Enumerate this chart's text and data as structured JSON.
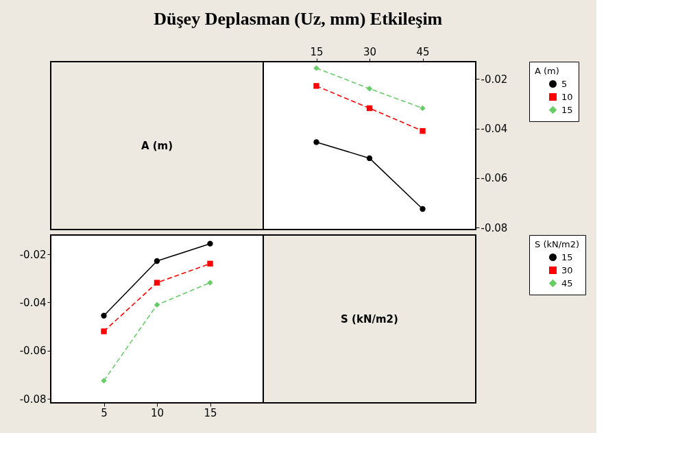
{
  "chart_data": [
    {
      "type": "line",
      "title": "Düşey Deplasman (Uz, mm) Etkileşim",
      "xlabel": "S (kN/m2)",
      "legend_title": "A (m)",
      "categories": [
        "15",
        "30",
        "45"
      ],
      "ylim": [
        -0.0808,
        -0.013
      ],
      "yticks": [
        -0.08,
        -0.06,
        -0.04,
        -0.02
      ],
      "grid": false,
      "legend": "right",
      "series": [
        {
          "name": "5",
          "color": "#000000",
          "marker": "circle",
          "line_style": "solid",
          "values": [
            -0.0455,
            -0.052,
            -0.0725
          ]
        },
        {
          "name": "10",
          "color": "#ff0000",
          "marker": "square",
          "line_style": "dashed",
          "values": [
            -0.0228,
            -0.0318,
            -0.041
          ]
        },
        {
          "name": "15",
          "color": "#66cc66",
          "marker": "diamond",
          "line_style": "dashed",
          "values": [
            -0.0156,
            -0.0239,
            -0.0318
          ]
        }
      ]
    },
    {
      "type": "line",
      "xlabel": "A (m)",
      "legend_title": "S (kN/m2)",
      "categories": [
        "5",
        "10",
        "15"
      ],
      "ylim": [
        -0.0817,
        -0.012
      ],
      "yticks": [
        -0.08,
        -0.06,
        -0.04,
        -0.02
      ],
      "grid": false,
      "legend": "right",
      "series": [
        {
          "name": "15",
          "color": "#000000",
          "marker": "circle",
          "line_style": "solid",
          "values": [
            -0.0455,
            -0.0228,
            -0.0156
          ]
        },
        {
          "name": "30",
          "color": "#ff0000",
          "marker": "square",
          "line_style": "dashed",
          "values": [
            -0.052,
            -0.0318,
            -0.0239
          ]
        },
        {
          "name": "45",
          "color": "#66cc66",
          "marker": "diamond",
          "line_style": "dashed",
          "values": [
            -0.0725,
            -0.041,
            -0.0318
          ]
        }
      ]
    }
  ]
}
